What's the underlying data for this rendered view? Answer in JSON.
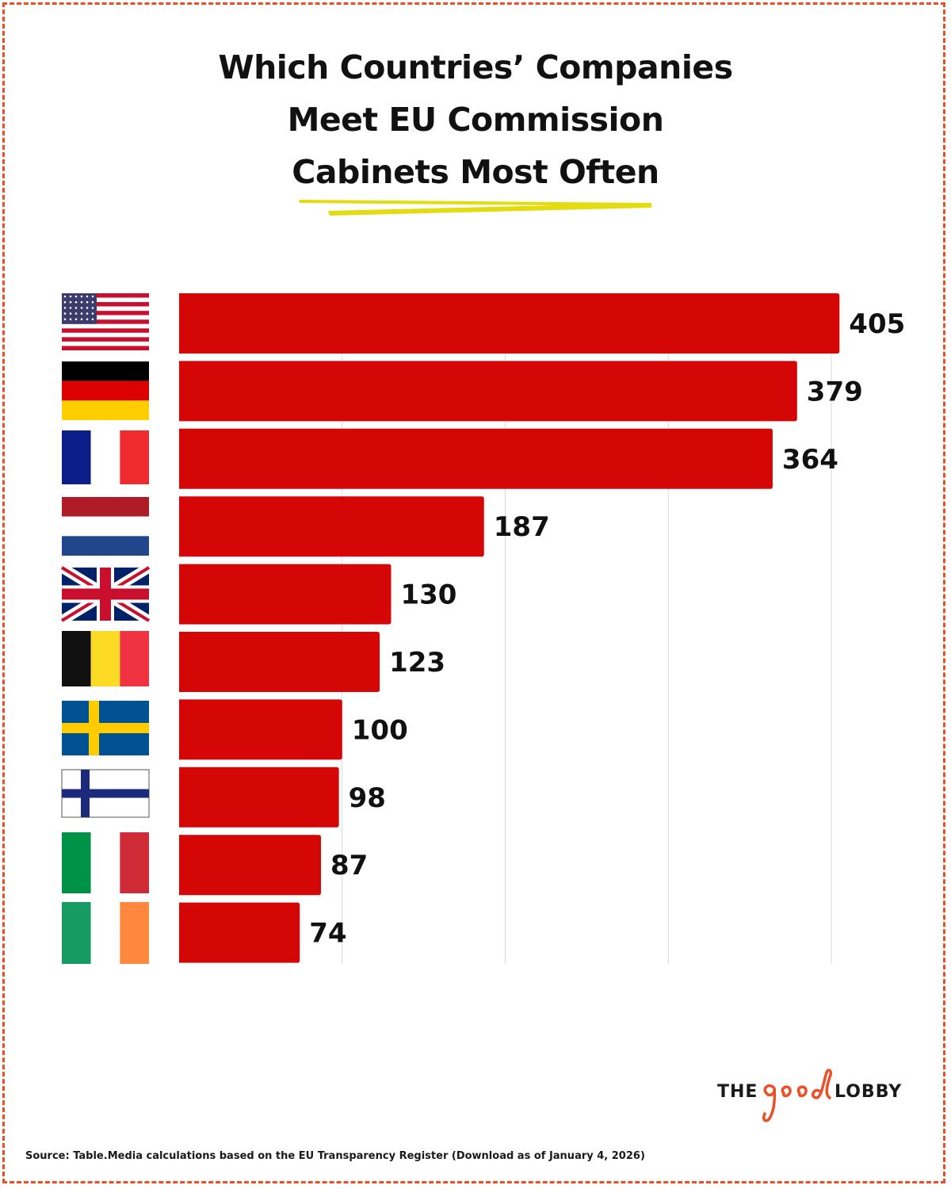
{
  "title": {
    "line1": "Which Countries’ Companies",
    "line2": "Meet EU Commission",
    "line3": "Cabinets Most Often"
  },
  "chart_data": {
    "type": "bar",
    "orientation": "horizontal",
    "categories": [
      "United States",
      "Germany",
      "France",
      "Netherlands",
      "United Kingdom",
      "Belgium",
      "Sweden",
      "Finland",
      "Italy",
      "Ireland"
    ],
    "category_icons": [
      "us-flag-icon",
      "germany-flag-icon",
      "france-flag-icon",
      "netherlands-flag-icon",
      "uk-flag-icon",
      "belgium-flag-icon",
      "sweden-flag-icon",
      "finland-flag-icon",
      "italy-flag-icon",
      "ireland-flag-icon"
    ],
    "values": [
      405,
      379,
      364,
      187,
      130,
      123,
      100,
      98,
      87,
      74
    ],
    "value_labels": [
      "405",
      "379",
      "364",
      "187",
      "130",
      "123",
      "100",
      "98",
      "87",
      "74"
    ],
    "xlim": [
      0,
      400
    ],
    "gridlines": [
      100,
      200,
      300,
      400
    ],
    "grid": true,
    "bar_color": "#d50606",
    "show_value_labels": true
  },
  "logo": {
    "the": "THE",
    "good": "good",
    "lobby": "LOBBY"
  },
  "source": "Source: Table.Media calculations based on the EU Transparency Register (Download as of January 4, 2026)",
  "colors": {
    "border": "#ee4e26",
    "underline": "#e2dc10",
    "bar": "#d50606",
    "logo_accent": "#ee4e26"
  }
}
